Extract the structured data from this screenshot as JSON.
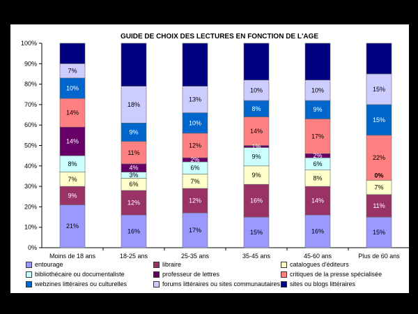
{
  "chart_data": {
    "type": "bar",
    "stacked": true,
    "title": "GUIDE DE CHOIX DES LECTURES EN FONCTION DE L'AGE",
    "xlabel": "",
    "ylabel": "",
    "ylim": [
      0,
      100
    ],
    "y_ticks": [
      "0%",
      "10%",
      "20%",
      "30%",
      "40%",
      "50%",
      "60%",
      "70%",
      "80%",
      "90%",
      "100%"
    ],
    "categories": [
      "Moins de 18 ans",
      "18-25 ans",
      "25-35 ans",
      "35-45 ans",
      "45-60 ans",
      "Plus de 60 ans"
    ],
    "legend_position": "bottom",
    "series": [
      {
        "name": "entourage",
        "color": "#9999ff",
        "values": [
          21,
          16,
          17,
          15,
          16,
          15
        ],
        "labels": [
          "21%",
          "16%",
          "17%",
          "15%",
          "16%",
          "15%"
        ]
      },
      {
        "name": "libraire",
        "color": "#993366",
        "values": [
          9,
          12,
          12,
          16,
          14,
          11
        ],
        "labels": [
          "9%",
          "12%",
          "12%",
          "16%",
          "14%",
          "11%"
        ]
      },
      {
        "name": "catalogues d'éditeurs",
        "color": "#ffffcc",
        "values": [
          7,
          6,
          7,
          9,
          8,
          7
        ],
        "labels": [
          "7%",
          "6%",
          "7%",
          "9%",
          "8%",
          "7%"
        ]
      },
      {
        "name": "bibliothécaire ou documentaliste",
        "color": "#ccffff",
        "values": [
          8,
          3,
          6,
          9,
          6,
          0
        ],
        "labels": [
          "8%",
          "3%",
          "6%",
          "9%",
          "6%",
          "0%"
        ]
      },
      {
        "name": "professeur de lettres",
        "color": "#660066",
        "values": [
          14,
          4,
          2,
          1,
          2,
          0
        ],
        "labels": [
          "14%",
          "4%",
          "2%",
          "1%",
          "2%",
          ""
        ]
      },
      {
        "name": "critiques de la presse spécialisée",
        "color": "#ff8080",
        "values": [
          14,
          11,
          12,
          14,
          17,
          22
        ],
        "labels": [
          "14%",
          "11%",
          "12%",
          "14%",
          "17%",
          "22%"
        ]
      },
      {
        "name": "webzines littéraires ou culturelles",
        "color": "#0066cc",
        "values": [
          10,
          9,
          10,
          8,
          9,
          15
        ],
        "labels": [
          "10%",
          "9%",
          "10%",
          "8%",
          "9%",
          "15%"
        ]
      },
      {
        "name": "forums littéraires ou sites communautaires",
        "color": "#ccccff",
        "values": [
          7,
          18,
          13,
          10,
          10,
          15
        ],
        "labels": [
          "7%",
          "18%",
          "13%",
          "10%",
          "10%",
          "15%"
        ]
      },
      {
        "name": "sites ou blogs littéraires",
        "color": "#000080",
        "values": [
          10,
          21,
          21,
          18,
          18,
          15
        ],
        "labels": [
          "",
          "",
          "",
          "",
          "",
          ""
        ]
      }
    ]
  }
}
